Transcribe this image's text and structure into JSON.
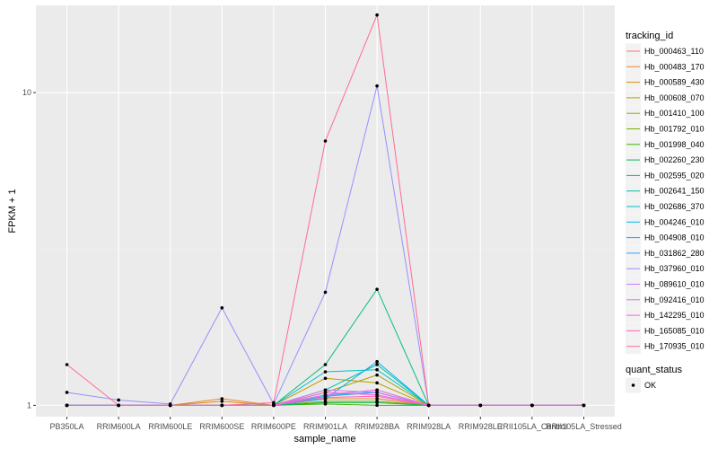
{
  "chart_data": {
    "type": "line",
    "xlabel": "sample_name",
    "ylabel": "FPKM + 1",
    "y_scale": "log10",
    "ylim": [
      0.92,
      19
    ],
    "y_ticks": [
      1,
      10
    ],
    "y_tick_labels": [
      "1",
      "10"
    ],
    "grid": true,
    "legend_placement": "right",
    "categories": [
      "PB350LA",
      "RRIM600LA",
      "RRIM600LE",
      "RRIM600SE",
      "RRIM600PE",
      "RRIM901LA",
      "RRIM928BA",
      "RRIM928LA",
      "RRIM928LE",
      "RRII105LA_Control",
      "RRII105LA_Stressed"
    ],
    "legend_title": "tracking_id",
    "shape_legend": {
      "title": "quant_status",
      "entries": [
        "OK"
      ]
    },
    "series": [
      {
        "name": "Hb_000463_110",
        "color": "#F8766D",
        "values": [
          1,
          1,
          1,
          1,
          1,
          1.05,
          1.05,
          1,
          1,
          1,
          1
        ]
      },
      {
        "name": "Hb_000483_170",
        "color": "#EA8331",
        "values": [
          1,
          1,
          1,
          1.05,
          1,
          1.05,
          1.05,
          1,
          1,
          1,
          1
        ]
      },
      {
        "name": "Hb_000589_430",
        "color": "#D89000",
        "values": [
          1,
          1,
          1,
          1.03,
          1,
          1.08,
          1.12,
          1,
          1,
          1,
          1
        ]
      },
      {
        "name": "Hb_000608_070",
        "color": "#C09B00",
        "values": [
          1,
          1,
          1,
          1,
          1,
          1.22,
          1.18,
          1,
          1,
          1,
          1
        ]
      },
      {
        "name": "Hb_001410_100",
        "color": "#A3A500",
        "values": [
          1,
          1,
          1,
          1,
          1,
          1.1,
          1.25,
          1,
          1,
          1,
          1
        ]
      },
      {
        "name": "Hb_001792_010",
        "color": "#7CAE00",
        "values": [
          1,
          1,
          1,
          1,
          1,
          1.03,
          1.03,
          1,
          1,
          1,
          1
        ]
      },
      {
        "name": "Hb_001998_040",
        "color": "#39B600",
        "values": [
          1,
          1,
          1,
          1,
          1,
          1.01,
          1,
          1,
          1,
          1,
          1
        ]
      },
      {
        "name": "Hb_002260_230",
        "color": "#00BB4E",
        "values": [
          1,
          1,
          1,
          1,
          1,
          1.02,
          1.02,
          1,
          1,
          1,
          1
        ]
      },
      {
        "name": "Hb_002595_020",
        "color": "#00BF7D",
        "values": [
          1,
          1,
          1,
          1,
          1,
          1.35,
          2.35,
          1,
          1,
          1,
          1
        ]
      },
      {
        "name": "Hb_002641_150",
        "color": "#00C1A3",
        "values": [
          1,
          1,
          1,
          1,
          1,
          1.12,
          1.35,
          1,
          1,
          1,
          1
        ]
      },
      {
        "name": "Hb_002686_370",
        "color": "#00BFC4",
        "values": [
          1,
          1,
          1,
          1,
          1,
          1.28,
          1.3,
          1,
          1,
          1,
          1
        ]
      },
      {
        "name": "Hb_004246_010",
        "color": "#00BAE0",
        "values": [
          1,
          1,
          1,
          1,
          1,
          1.07,
          1.1,
          1,
          1,
          1,
          1
        ]
      },
      {
        "name": "Hb_004908_010",
        "color": "#00B0F6",
        "values": [
          1,
          1,
          1,
          1,
          1,
          1.05,
          1.38,
          1,
          1,
          1,
          1
        ]
      },
      {
        "name": "Hb_031862_280",
        "color": "#35A2FF",
        "values": [
          1,
          1,
          1,
          1,
          1,
          1.08,
          1.1,
          1,
          1,
          1,
          1
        ]
      },
      {
        "name": "Hb_037960_010",
        "color": "#9590FF",
        "values": [
          1.1,
          1.04,
          1.01,
          2.05,
          1.01,
          2.3,
          10.5,
          1,
          1,
          1,
          1
        ]
      },
      {
        "name": "Hb_089610_010",
        "color": "#C77CFF",
        "values": [
          1,
          1,
          1,
          1,
          1,
          1.12,
          1.1,
          1,
          1,
          1,
          1
        ]
      },
      {
        "name": "Hb_092416_010",
        "color": "#E76BF3",
        "values": [
          1,
          1,
          1,
          1,
          1,
          1.08,
          1.12,
          1,
          1,
          1,
          1
        ]
      },
      {
        "name": "Hb_142295_010",
        "color": "#FA62DB",
        "values": [
          1,
          1,
          1,
          1,
          1,
          1.1,
          1.08,
          1,
          1,
          1,
          1
        ]
      },
      {
        "name": "Hb_165085_010",
        "color": "#FF62BC",
        "values": [
          1,
          1,
          1,
          1,
          1,
          1.06,
          1.07,
          1,
          1,
          1,
          1
        ]
      },
      {
        "name": "Hb_170935_010",
        "color": "#FF6C91",
        "values": [
          1.35,
          1,
          1,
          1,
          1.02,
          7,
          17.7,
          1,
          1,
          1,
          1
        ]
      }
    ]
  }
}
